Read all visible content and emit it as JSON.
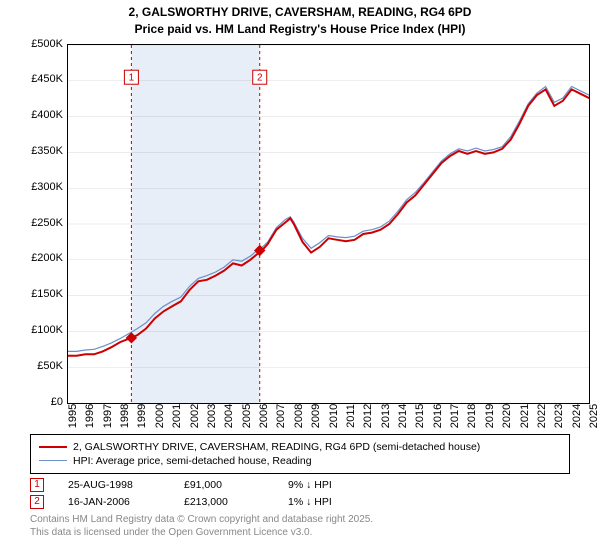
{
  "title_line1": "2, GALSWORTHY DRIVE, CAVERSHAM, READING, RG4 6PD",
  "title_line2": "Price paid vs. HM Land Registry's House Price Index (HPI)",
  "chart": {
    "type": "line",
    "background_color": "#ffffff",
    "shade_color": "#e8eef7",
    "border_color": "#000000",
    "yaxis": {
      "min": 0,
      "max": 500000,
      "step": 50000,
      "format_prefix": "£",
      "format_suffix": "K",
      "ticks": [
        "£0",
        "£50K",
        "£100K",
        "£150K",
        "£200K",
        "£250K",
        "£300K",
        "£350K",
        "£400K",
        "£450K",
        "£500K"
      ]
    },
    "xaxis": {
      "min": 1995,
      "max": 2025,
      "step": 1,
      "ticks": [
        "1995",
        "1996",
        "1997",
        "1998",
        "1999",
        "2000",
        "2001",
        "2002",
        "2003",
        "2004",
        "2005",
        "2006",
        "2007",
        "2008",
        "2009",
        "2010",
        "2011",
        "2012",
        "2013",
        "2014",
        "2015",
        "2016",
        "2017",
        "2018",
        "2019",
        "2020",
        "2021",
        "2022",
        "2023",
        "2024",
        "2025"
      ]
    },
    "guide_x": [
      1998.65,
      2006.04
    ],
    "series": [
      {
        "label": "2, GALSWORTHY DRIVE, CAVERSHAM, READING, RG4 6PD (semi-detached house)",
        "color": "#cc0000",
        "line_width": 2,
        "data_x": [
          1995,
          1995.5,
          1996,
          1996.5,
          1997,
          1997.5,
          1998,
          1998.65,
          1999,
          1999.5,
          2000,
          2000.5,
          2001,
          2001.5,
          2002,
          2002.5,
          2003,
          2003.5,
          2004,
          2004.5,
          2005,
          2005.5,
          2006,
          2006.04,
          2006.2,
          2006.5,
          2007,
          2007.5,
          2007.8,
          2008,
          2008.5,
          2009,
          2009.5,
          2010,
          2010.5,
          2011,
          2011.5,
          2012,
          2012.5,
          2013,
          2013.5,
          2014,
          2014.5,
          2015,
          2015.5,
          2016,
          2016.5,
          2017,
          2017.5,
          2018,
          2018.5,
          2019,
          2019.5,
          2020,
          2020.5,
          2021,
          2021.5,
          2022,
          2022.5,
          2023,
          2023.5,
          2024,
          2024.5,
          2025,
          2025.3
        ],
        "data_y": [
          66000,
          66000,
          68000,
          68000,
          72000,
          78000,
          85000,
          91000,
          95000,
          104000,
          118000,
          128000,
          135000,
          142000,
          158000,
          170000,
          172000,
          178000,
          185000,
          195000,
          192000,
          200000,
          210000,
          213000,
          214000,
          222000,
          242000,
          252000,
          258000,
          250000,
          225000,
          210000,
          218000,
          230000,
          228000,
          226000,
          228000,
          236000,
          238000,
          242000,
          250000,
          264000,
          280000,
          290000,
          305000,
          320000,
          335000,
          345000,
          352000,
          348000,
          352000,
          348000,
          350000,
          355000,
          368000,
          390000,
          415000,
          430000,
          438000,
          415000,
          422000,
          438000,
          432000,
          426000,
          430000
        ]
      },
      {
        "label": "HPI: Average price, semi-detached house, Reading",
        "color": "#6a8fc9",
        "line_width": 1.2,
        "data_x": [
          1995,
          1995.5,
          1996,
          1996.5,
          1997,
          1997.5,
          1998,
          1998.65,
          1999,
          1999.5,
          2000,
          2000.5,
          2001,
          2001.5,
          2002,
          2002.5,
          2003,
          2003.5,
          2004,
          2004.5,
          2005,
          2005.5,
          2006,
          2006.04,
          2006.2,
          2006.5,
          2007,
          2007.5,
          2007.8,
          2008,
          2008.5,
          2009,
          2009.5,
          2010,
          2010.5,
          2011,
          2011.5,
          2012,
          2012.5,
          2013,
          2013.5,
          2014,
          2014.5,
          2015,
          2015.5,
          2016,
          2016.5,
          2017,
          2017.5,
          2018,
          2018.5,
          2019,
          2019.5,
          2020,
          2020.5,
          2021,
          2021.5,
          2022,
          2022.5,
          2023,
          2023.5,
          2024,
          2024.5,
          2025,
          2025.3
        ],
        "data_y": [
          72000,
          72000,
          74000,
          75000,
          79000,
          84000,
          90000,
          99000,
          104000,
          112000,
          125000,
          135000,
          142000,
          148000,
          163000,
          174000,
          178000,
          183000,
          190000,
          200000,
          198000,
          205000,
          215000,
          216000,
          218000,
          225000,
          245000,
          256000,
          260000,
          253000,
          230000,
          216000,
          224000,
          234000,
          232000,
          231000,
          233000,
          240000,
          242000,
          246000,
          254000,
          268000,
          284000,
          294000,
          308000,
          323000,
          338000,
          348000,
          355000,
          352000,
          356000,
          352000,
          354000,
          358000,
          372000,
          394000,
          418000,
          433000,
          442000,
          420000,
          426000,
          442000,
          436000,
          430000,
          434000
        ]
      }
    ],
    "markers": [
      {
        "label": "1",
        "x": 1998.65,
        "y": 91000,
        "color": "#cc0000"
      },
      {
        "label": "2",
        "x": 2006.04,
        "y": 213000,
        "color": "#cc0000"
      }
    ],
    "marker_box": {
      "size": 14,
      "top_y": 455000
    }
  },
  "legend": {
    "items": [
      {
        "color": "#cc0000",
        "line_width": 2,
        "label": "2, GALSWORTHY DRIVE, CAVERSHAM, READING, RG4 6PD (semi-detached house)"
      },
      {
        "color": "#6a8fc9",
        "line_width": 1.2,
        "label": "HPI: Average price, semi-detached house, Reading"
      }
    ]
  },
  "transactions": [
    {
      "num": "1",
      "date": "25-AUG-1998",
      "price": "£91,000",
      "diff": "9% ↓ HPI"
    },
    {
      "num": "2",
      "date": "16-JAN-2006",
      "price": "£213,000",
      "diff": "1% ↓ HPI"
    }
  ],
  "footer_line1": "Contains HM Land Registry data © Crown copyright and database right 2025.",
  "footer_line2": "This data is licensed under the Open Government Licence v3.0."
}
